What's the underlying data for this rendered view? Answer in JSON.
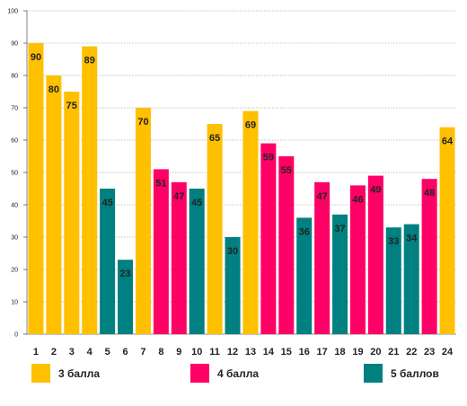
{
  "chart_data": {
    "type": "bar",
    "categories": [
      "1",
      "2",
      "3",
      "4",
      "5",
      "6",
      "7",
      "8",
      "9",
      "10",
      "11",
      "12",
      "13",
      "14",
      "15",
      "16",
      "17",
      "18",
      "19",
      "20",
      "21",
      "22",
      "23",
      "24"
    ],
    "values": [
      90,
      80,
      75,
      89,
      45,
      23,
      70,
      51,
      47,
      45,
      65,
      30,
      69,
      59,
      55,
      36,
      47,
      37,
      46,
      49,
      33,
      34,
      48,
      64
    ],
    "groups": [
      "3 балла",
      "3 балла",
      "3 балла",
      "3 балла",
      "5 баллов",
      "5 баллов",
      "3 балла",
      "4 балла",
      "4 балла",
      "5 баллов",
      "3 балла",
      "5 баллов",
      "3 балла",
      "4 балла",
      "4 балла",
      "5 баллов",
      "4 балла",
      "5 баллов",
      "4 балла",
      "4 балла",
      "5 баллов",
      "5 баллов",
      "4 балла",
      "3 балла"
    ],
    "ylim": [
      0,
      100
    ],
    "yticks": [
      0,
      10,
      20,
      30,
      40,
      50,
      60,
      70,
      80,
      90,
      100
    ],
    "grid": true,
    "legend_position": "bottom",
    "series": [
      {
        "name": "3 балла",
        "color": "#FFC000"
      },
      {
        "name": "4 балла",
        "color": "#FF0066"
      },
      {
        "name": "5 баллов",
        "color": "#008080"
      }
    ]
  },
  "legend": {
    "items": [
      {
        "label": "3 балла",
        "color": "#FFC000"
      },
      {
        "label": "4 балла",
        "color": "#FF0066"
      },
      {
        "label": "5 баллов",
        "color": "#008080"
      }
    ]
  }
}
